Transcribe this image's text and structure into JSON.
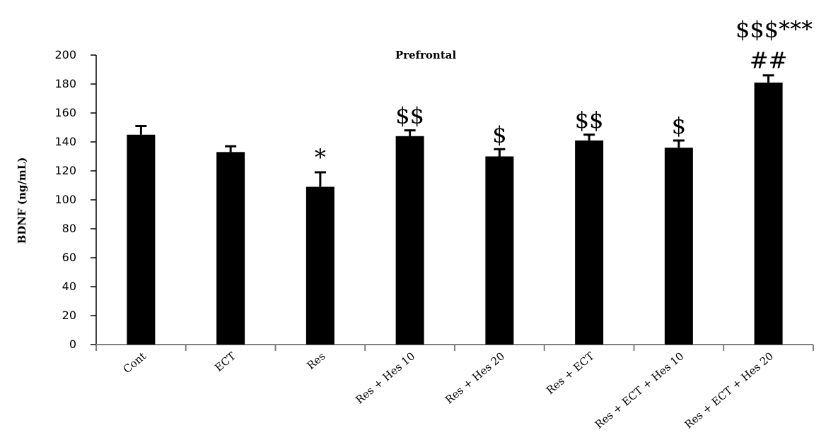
{
  "chart_data": {
    "type": "bar",
    "title": "Prefrontal",
    "ylabel": "BDNF (ng/mL)",
    "xlabel": "",
    "ylim": [
      0,
      200
    ],
    "yticks": [
      0,
      20,
      40,
      60,
      80,
      100,
      120,
      140,
      160,
      180,
      200
    ],
    "categories": [
      "Cont",
      "ECT",
      "Res",
      "Res + Hes 10",
      "Res + Hes 20",
      "Res + ECT",
      "Res + ECT + Hes 10",
      "Res + ECT + Hes 20"
    ],
    "values": [
      145,
      133,
      109,
      144,
      130,
      141,
      136,
      181
    ],
    "errors": [
      6,
      4,
      10,
      4,
      5,
      4,
      5,
      5
    ],
    "annotations": [
      "",
      "",
      "*",
      "$$",
      "$",
      "$$",
      "$",
      "$$$***"
    ],
    "annotations2": [
      "",
      "",
      "",
      "",
      "",
      "",
      "",
      "##"
    ],
    "bar_color": "#000000",
    "grid": false,
    "legend": "none"
  }
}
